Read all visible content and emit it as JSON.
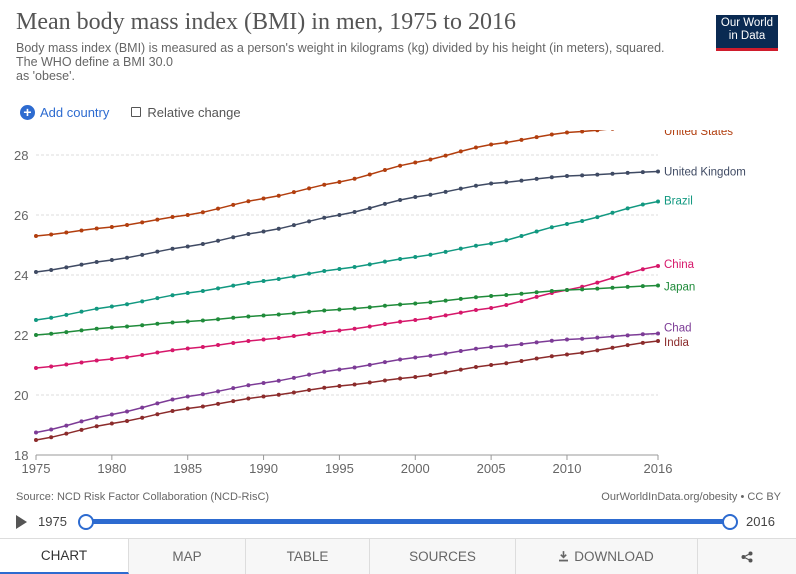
{
  "header": {
    "title": "Mean body mass index (BMI) in men, 1975 to 2016",
    "subtitle_lines": [
      "Body mass index (BMI) is measured as a person's weight in kilograms (kg) divided by his height (in meters), squared.",
      "The WHO define a BMI 30.0",
      "as 'obese'."
    ],
    "logo_lines": [
      "Our World",
      "in Data"
    ]
  },
  "controls": {
    "add_country": "Add country",
    "relative_change": "Relative change",
    "relative_checked": false
  },
  "chart_data": {
    "type": "line",
    "title": "Mean body mass index (BMI) in men, 1975 to 2016",
    "xlim": [
      1975,
      2016
    ],
    "ylim": [
      18,
      29
    ],
    "x_ticks": [
      1975,
      1980,
      1985,
      1990,
      1995,
      2000,
      2005,
      2010,
      2016
    ],
    "y_ticks": [
      18,
      20,
      22,
      24,
      26,
      28
    ],
    "grid": "horizontal dashed",
    "legend": "labels at line ends (right)",
    "series": [
      {
        "name": "United States",
        "color": "#b23e0e",
        "keys": [
          [
            1975,
            25.3
          ],
          [
            1980,
            25.6
          ],
          [
            1985,
            26.0
          ],
          [
            1990,
            26.55
          ],
          [
            1995,
            27.1
          ],
          [
            2000,
            27.75
          ],
          [
            2005,
            28.35
          ],
          [
            2010,
            28.75
          ],
          [
            2016,
            29.0
          ]
        ]
      },
      {
        "name": "United Kingdom",
        "color": "#3f4a63",
        "keys": [
          [
            1975,
            24.1
          ],
          [
            1980,
            24.5
          ],
          [
            1985,
            24.95
          ],
          [
            1990,
            25.45
          ],
          [
            1995,
            26.0
          ],
          [
            2000,
            26.6
          ],
          [
            2005,
            27.05
          ],
          [
            2010,
            27.3
          ],
          [
            2016,
            27.45
          ]
        ]
      },
      {
        "name": "Brazil",
        "color": "#119880",
        "keys": [
          [
            1975,
            22.5
          ],
          [
            1980,
            22.95
          ],
          [
            1985,
            23.4
          ],
          [
            1990,
            23.8
          ],
          [
            1995,
            24.2
          ],
          [
            2000,
            24.6
          ],
          [
            2005,
            25.05
          ],
          [
            2010,
            25.7
          ],
          [
            2016,
            26.45
          ]
        ]
      },
      {
        "name": "China",
        "color": "#d6176a",
        "keys": [
          [
            1975,
            20.9
          ],
          [
            1980,
            21.2
          ],
          [
            1985,
            21.55
          ],
          [
            1990,
            21.85
          ],
          [
            1995,
            22.15
          ],
          [
            2000,
            22.5
          ],
          [
            2005,
            22.9
          ],
          [
            2010,
            23.5
          ],
          [
            2016,
            24.3
          ]
        ]
      },
      {
        "name": "Japan",
        "color": "#1f8b3a",
        "keys": [
          [
            1975,
            22.0
          ],
          [
            1980,
            22.25
          ],
          [
            1985,
            22.45
          ],
          [
            1990,
            22.65
          ],
          [
            1995,
            22.85
          ],
          [
            2000,
            23.05
          ],
          [
            2005,
            23.3
          ],
          [
            2010,
            23.5
          ],
          [
            2016,
            23.65
          ]
        ]
      },
      {
        "name": "Chad",
        "color": "#7c3b96",
        "keys": [
          [
            1975,
            18.75
          ],
          [
            1980,
            19.35
          ],
          [
            1985,
            19.95
          ],
          [
            1990,
            20.4
          ],
          [
            1995,
            20.85
          ],
          [
            2000,
            21.25
          ],
          [
            2005,
            21.6
          ],
          [
            2010,
            21.85
          ],
          [
            2016,
            22.05
          ]
        ]
      },
      {
        "name": "India",
        "color": "#8b2b2b",
        "keys": [
          [
            1975,
            18.5
          ],
          [
            1980,
            19.05
          ],
          [
            1985,
            19.55
          ],
          [
            1990,
            19.95
          ],
          [
            1995,
            20.3
          ],
          [
            2000,
            20.6
          ],
          [
            2005,
            21.0
          ],
          [
            2010,
            21.35
          ],
          [
            2016,
            21.8
          ]
        ]
      }
    ]
  },
  "footer": {
    "source": "Source: NCD Risk Factor Collaboration (NCD-RisC)",
    "link": "OurWorldInData.org/obesity • CC BY"
  },
  "timeline": {
    "start_label": "1975",
    "end_label": "2016",
    "start_fraction": 0,
    "end_fraction": 1
  },
  "tabs": [
    {
      "label": "CHART",
      "active": true
    },
    {
      "label": "MAP",
      "active": false
    },
    {
      "label": "TABLE",
      "active": false
    },
    {
      "label": "SOURCES",
      "active": false
    },
    {
      "label": "DOWNLOAD",
      "active": false,
      "icon": "download-icon"
    },
    {
      "label": "",
      "active": false,
      "icon": "share-icon"
    }
  ]
}
